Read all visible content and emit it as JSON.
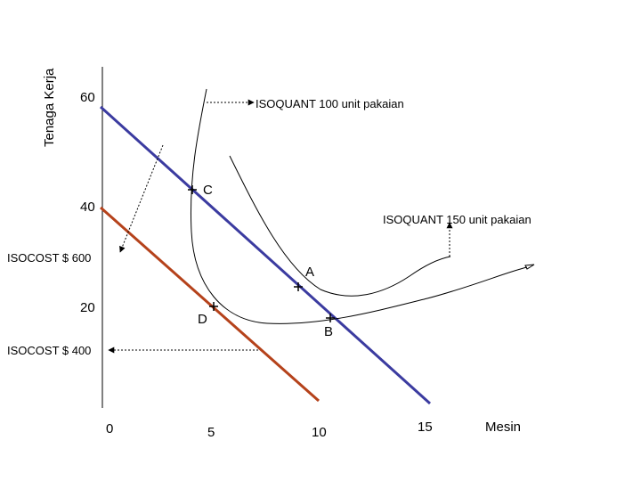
{
  "axes": {
    "y_label": "Tenaga Kerja",
    "x_label": "Mesin",
    "y_ticks": [
      "60",
      "40",
      "20"
    ],
    "x_ticks": [
      "0",
      "5",
      "10",
      "15"
    ]
  },
  "curves": {
    "isoquant_100": "ISOQUANT 100 unit pakaian",
    "isoquant_150": "ISOQUANT 150 unit pakaian",
    "isocost_600": "ISOCOST $ 600",
    "isocost_400": "ISOCOST $ 400"
  },
  "points": [
    "A",
    "B",
    "C",
    "D"
  ]
}
